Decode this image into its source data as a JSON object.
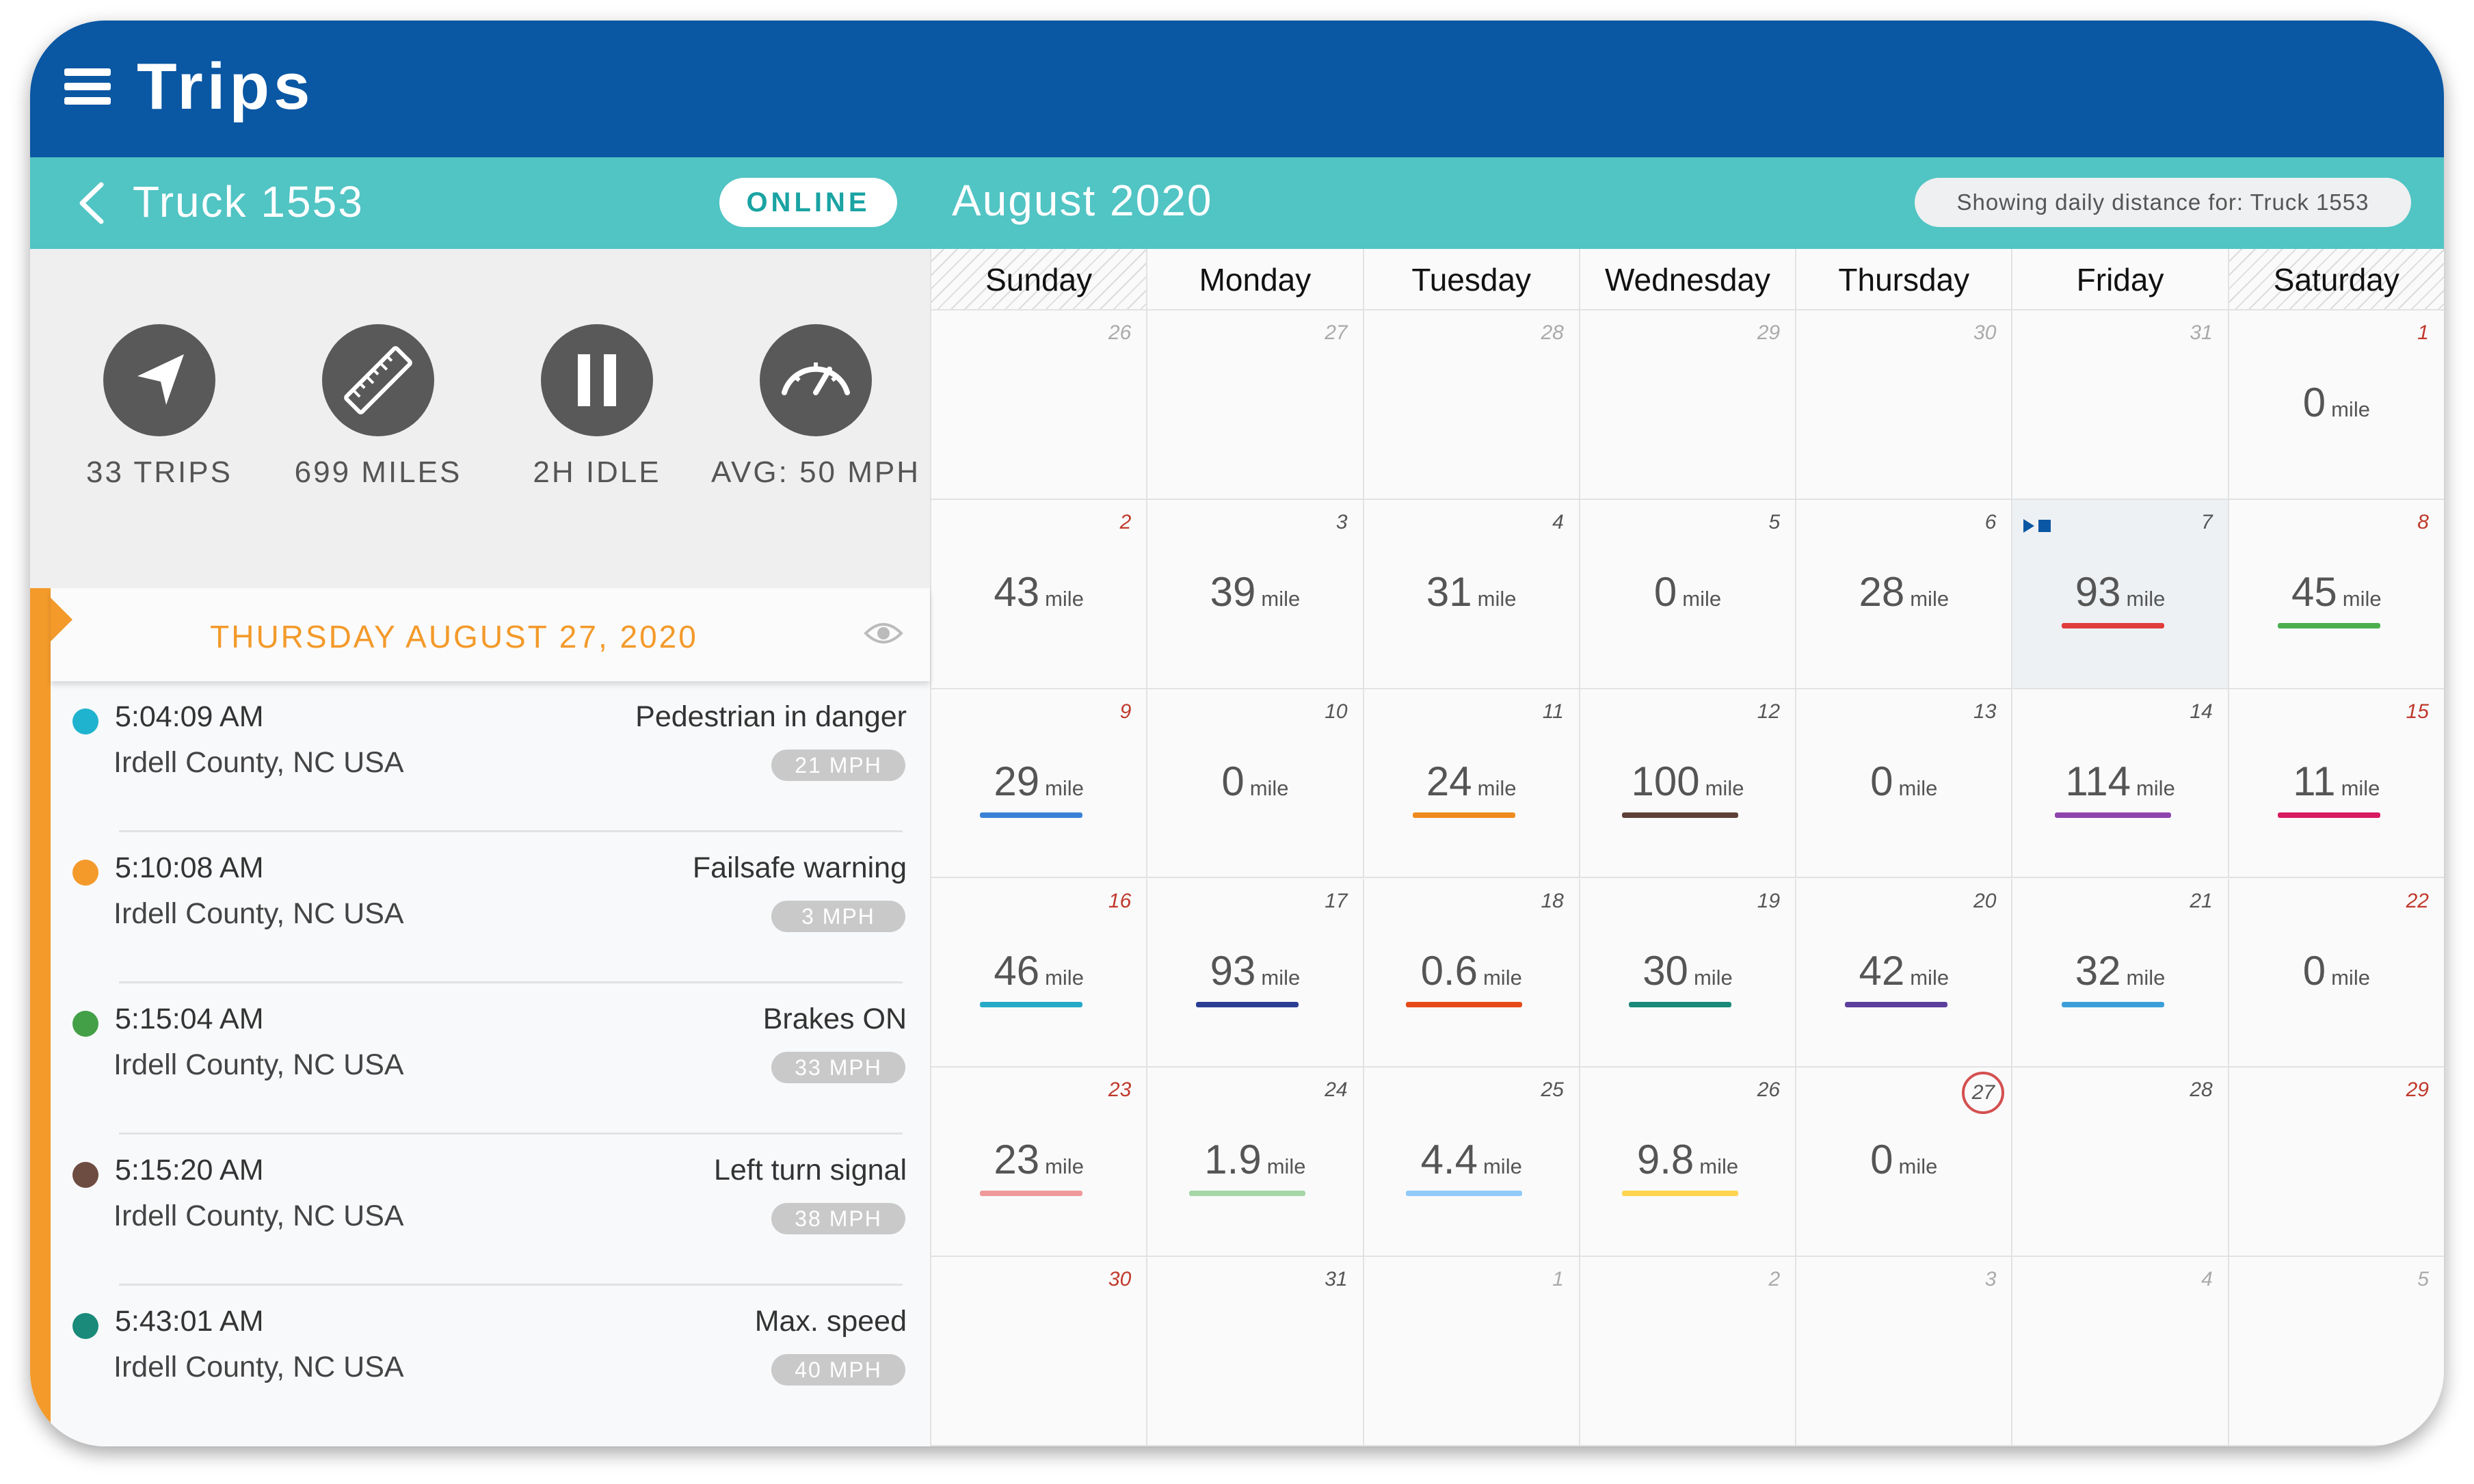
{
  "header": {
    "title": "Trips"
  },
  "vehicle": {
    "name": "Truck 1553",
    "status": "ONLINE"
  },
  "calendar": {
    "month_title": "August 2020",
    "showing_label": "Showing daily distance for: Truck 1553",
    "weekdays": [
      "Sunday",
      "Monday",
      "Tuesday",
      "Wednesday",
      "Thursday",
      "Friday",
      "Saturday"
    ],
    "unit": "mile",
    "weeks": [
      [
        {
          "day": "26"
        },
        {
          "day": "27"
        },
        {
          "day": "28"
        },
        {
          "day": "29"
        },
        {
          "day": "30"
        },
        {
          "day": "31"
        },
        {
          "day": "1",
          "value": "0"
        }
      ],
      [
        {
          "day": "2",
          "value": "43"
        },
        {
          "day": "3",
          "value": "39"
        },
        {
          "day": "4",
          "value": "31"
        },
        {
          "day": "5",
          "value": "0"
        },
        {
          "day": "6",
          "value": "28"
        },
        {
          "day": "7",
          "value": "93",
          "color": "#e03c3c"
        },
        {
          "day": "8",
          "value": "45",
          "color": "#4caf50"
        }
      ],
      [
        {
          "day": "9",
          "value": "29",
          "color": "#3b82d6"
        },
        {
          "day": "10",
          "value": "0"
        },
        {
          "day": "11",
          "value": "24",
          "color": "#ef8a1e"
        },
        {
          "day": "12",
          "value": "100",
          "color": "#5d4037"
        },
        {
          "day": "13",
          "value": "0"
        },
        {
          "day": "14",
          "value": "114",
          "color": "#8e44ad"
        },
        {
          "day": "15",
          "value": "11",
          "color": "#d81b60"
        }
      ],
      [
        {
          "day": "16",
          "value": "46",
          "color": "#26a9c6"
        },
        {
          "day": "17",
          "value": "93",
          "color": "#2c3e94"
        },
        {
          "day": "18",
          "value": "0.6",
          "color": "#e64a19"
        },
        {
          "day": "19",
          "value": "30",
          "color": "#1a8a7a"
        },
        {
          "day": "20",
          "value": "42",
          "color": "#5b3f9c"
        },
        {
          "day": "21",
          "value": "32",
          "color": "#3d9fd9"
        },
        {
          "day": "22",
          "value": "0"
        }
      ],
      [
        {
          "day": "23",
          "value": "23",
          "color": "#ef9a9a"
        },
        {
          "day": "24",
          "value": "1.9",
          "color": "#a5d6a7"
        },
        {
          "day": "25",
          "value": "4.4",
          "color": "#90caf9"
        },
        {
          "day": "26",
          "value": "9.8",
          "color": "#ffd54f"
        },
        {
          "day": "27",
          "value": "0"
        },
        {
          "day": "28"
        },
        {
          "day": "29"
        }
      ],
      [
        {
          "day": "30"
        },
        {
          "day": "31"
        },
        {
          "day": "1"
        },
        {
          "day": "2"
        },
        {
          "day": "3"
        },
        {
          "day": "4"
        },
        {
          "day": "5"
        }
      ]
    ]
  },
  "stats": {
    "trips": "33 TRIPS",
    "miles": "699 MILES",
    "idle": "2H IDLE",
    "avg": "AVG: 50 MPH",
    "icons": [
      "navigation-arrow-icon",
      "ruler-icon",
      "pause-icon",
      "speedometer-icon"
    ]
  },
  "day_header": "THURSDAY AUGUST 27, 2020",
  "events": [
    {
      "time": "5:04:09 AM",
      "place": "Irdell County, NC USA",
      "name": "Pedestrian in danger",
      "speed": "21 MPH",
      "color": "#1fb3cf"
    },
    {
      "time": "5:10:08 AM",
      "place": "Irdell County, NC USA",
      "name": "Failsafe warning",
      "speed": "3 MPH",
      "color": "#f39a2b"
    },
    {
      "time": "5:15:04 AM",
      "place": "Irdell County, NC USA",
      "name": "Brakes ON",
      "speed": "33 MPH",
      "color": "#43a047"
    },
    {
      "time": "5:15:20 AM",
      "place": "Irdell County, NC USA",
      "name": "Left turn signal",
      "speed": "38 MPH",
      "color": "#6d4c41"
    },
    {
      "time": "5:43:01 AM",
      "place": "Irdell County, NC USA",
      "name": "Max. speed",
      "speed": "40 MPH",
      "color": "#1a8a7a"
    }
  ]
}
